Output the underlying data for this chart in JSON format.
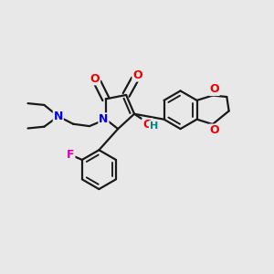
{
  "bg_color": "#e8e8e8",
  "bond_color": "#1a1a1a",
  "bond_width": 1.6,
  "dbo": 0.013,
  "atom_colors": {
    "N": "#0000ee",
    "O": "#ee0000",
    "F": "#dd00aa",
    "OH_O": "#ee0000",
    "OH_H": "#008888"
  },
  "font_size": 9.0,
  "xlim": [
    0.0,
    1.0
  ],
  "ylim": [
    0.0,
    1.0
  ]
}
